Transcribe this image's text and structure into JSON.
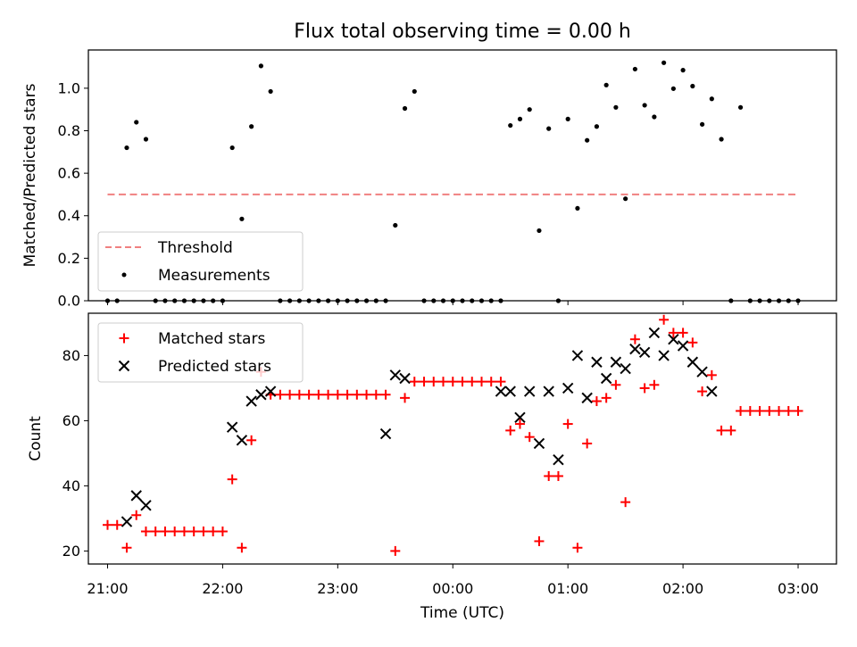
{
  "chart_data": [
    {
      "type": "scatter",
      "title": "Flux total observing time = 0.00 h",
      "xlabel": "",
      "ylabel": "Matched/Predicted stars",
      "ylim": [
        0,
        1.18
      ],
      "xlim": [
        "20:50",
        "03:20"
      ],
      "yticks": [
        "0.0",
        "0.2",
        "0.4",
        "0.6",
        "0.8",
        "1.0"
      ],
      "legend": {
        "placement": "lower-left",
        "entries": [
          "Threshold",
          "Measurements"
        ]
      },
      "series": [
        {
          "name": "Threshold",
          "kind": "dashed-line",
          "color": "#f08080",
          "x": [
            "21:00",
            "03:00"
          ],
          "y": [
            0.5,
            0.5
          ]
        },
        {
          "name": "Measurements",
          "kind": "dots",
          "color": "#000000",
          "x": [
            "21:00",
            "21:05",
            "21:10",
            "21:15",
            "21:20",
            "21:25",
            "21:30",
            "21:35",
            "21:40",
            "21:45",
            "21:50",
            "21:55",
            "22:00",
            "22:05",
            "22:10",
            "22:15",
            "22:20",
            "22:25",
            "22:30",
            "22:35",
            "22:40",
            "22:45",
            "22:50",
            "22:55",
            "23:00",
            "23:05",
            "23:10",
            "23:15",
            "23:20",
            "23:25",
            "23:30",
            "23:35",
            "23:40",
            "23:45",
            "23:50",
            "23:55",
            "00:00",
            "00:05",
            "00:10",
            "00:15",
            "00:20",
            "00:25",
            "00:30",
            "00:35",
            "00:40",
            "00:45",
            "00:50",
            "00:55",
            "01:00",
            "01:05",
            "01:10",
            "01:15",
            "01:20",
            "01:25",
            "01:30",
            "01:35",
            "01:40",
            "01:45",
            "01:50",
            "01:55",
            "02:00",
            "02:05",
            "02:10",
            "02:15",
            "02:20",
            "02:25",
            "02:30",
            "02:35",
            "02:40",
            "02:45",
            "02:50",
            "02:55",
            "03:00"
          ],
          "y": [
            0.0,
            0.0,
            0.72,
            0.84,
            0.76,
            0.0,
            0.0,
            0.0,
            0.0,
            0.0,
            0.0,
            0.0,
            0.0,
            0.72,
            0.385,
            0.82,
            1.105,
            0.985,
            0.0,
            0.0,
            0.0,
            0.0,
            0.0,
            0.0,
            0.0,
            0.0,
            0.0,
            0.0,
            0.0,
            0.0,
            0.355,
            0.905,
            0.985,
            0.0,
            0.0,
            0.0,
            0.0,
            0.0,
            0.0,
            0.0,
            0.0,
            0.0,
            0.825,
            0.855,
            0.9,
            0.33,
            0.81,
            0.0,
            0.855,
            0.435,
            0.755,
            0.82,
            1.015,
            0.91,
            0.48,
            1.09,
            0.92,
            0.865,
            1.12,
            0.998,
            1.085,
            1.01,
            0.83,
            0.95,
            0.76,
            0.0,
            0.91,
            0.0,
            0.0,
            0.0,
            0.0,
            0.0,
            0.0
          ]
        }
      ]
    },
    {
      "type": "scatter",
      "title": "",
      "xlabel": "Time (UTC)",
      "ylabel": "Count",
      "ylim": [
        16,
        93
      ],
      "xlim": [
        "20:50",
        "03:20"
      ],
      "yticks": [
        "20",
        "40",
        "60",
        "80"
      ],
      "xticks": [
        "21:00",
        "22:00",
        "23:00",
        "00:00",
        "01:00",
        "02:00",
        "03:00"
      ],
      "legend": {
        "placement": "top-left",
        "entries": [
          "Matched stars",
          "Predicted stars"
        ]
      },
      "series": [
        {
          "name": "Matched stars",
          "kind": "plus",
          "color": "#ff0000",
          "x": [
            "21:00",
            "21:05",
            "21:10",
            "21:15",
            "21:20",
            "21:25",
            "21:30",
            "21:35",
            "21:40",
            "21:45",
            "21:50",
            "21:55",
            "22:00",
            "22:05",
            "22:10",
            "22:15",
            "22:20",
            "22:25",
            "22:30",
            "22:35",
            "22:40",
            "22:45",
            "22:50",
            "22:55",
            "23:00",
            "23:05",
            "23:10",
            "23:15",
            "23:20",
            "23:25",
            "23:30",
            "23:35",
            "23:40",
            "23:45",
            "23:50",
            "23:55",
            "00:00",
            "00:05",
            "00:10",
            "00:15",
            "00:20",
            "00:25",
            "00:30",
            "00:35",
            "00:40",
            "00:45",
            "00:50",
            "00:55",
            "01:00",
            "01:05",
            "01:10",
            "01:15",
            "01:20",
            "01:25",
            "01:30",
            "01:35",
            "01:40",
            "01:45",
            "01:50",
            "01:55",
            "02:00",
            "02:05",
            "02:10",
            "02:15",
            "02:20",
            "02:25",
            "02:30",
            "02:35",
            "02:40",
            "02:45",
            "02:50",
            "02:55",
            "03:00"
          ],
          "y": [
            28,
            28,
            21,
            31,
            26,
            26,
            26,
            26,
            26,
            26,
            26,
            26,
            26,
            42,
            21,
            54,
            75,
            68,
            68,
            68,
            68,
            68,
            68,
            68,
            68,
            68,
            68,
            68,
            68,
            68,
            20,
            67,
            72,
            72,
            72,
            72,
            72,
            72,
            72,
            72,
            72,
            72,
            57,
            59,
            55,
            23,
            43,
            43,
            59,
            21,
            53,
            66,
            67,
            71,
            35,
            85,
            70,
            71,
            91,
            87,
            87,
            84,
            69,
            74,
            57,
            57,
            63,
            63,
            63,
            63,
            63,
            63,
            63
          ]
        },
        {
          "name": "Predicted stars",
          "kind": "x",
          "color": "#000000",
          "x": [
            "21:10",
            "21:15",
            "21:20",
            "22:05",
            "22:10",
            "22:15",
            "22:20",
            "22:25",
            "23:25",
            "23:30",
            "23:35",
            "00:25",
            "00:30",
            "00:35",
            "00:40",
            "00:45",
            "00:50",
            "00:55",
            "01:00",
            "01:05",
            "01:10",
            "01:15",
            "01:20",
            "01:25",
            "01:30",
            "01:35",
            "01:40",
            "01:45",
            "01:50",
            "01:55",
            "02:00",
            "02:05",
            "02:10",
            "02:15"
          ],
          "y": [
            29,
            37,
            34,
            58,
            54,
            66,
            68,
            69,
            56,
            74,
            73,
            69,
            69,
            61,
            69,
            53,
            69,
            48,
            70,
            80,
            67,
            78,
            73,
            78,
            76,
            82,
            81,
            87,
            80,
            85,
            83,
            78,
            75,
            69
          ]
        }
      ]
    }
  ]
}
